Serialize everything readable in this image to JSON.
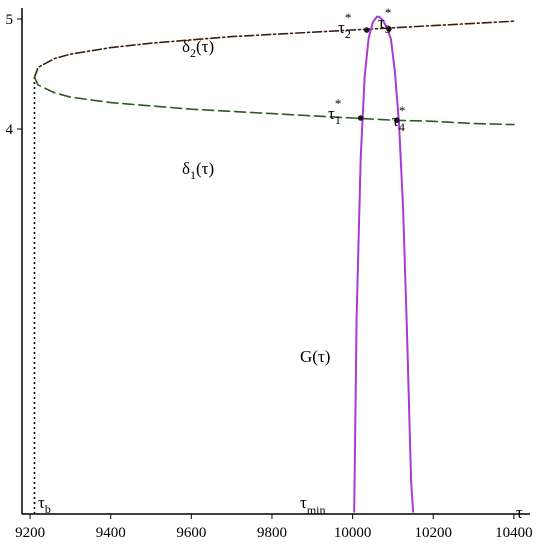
{
  "chart_data": {
    "type": "line",
    "title": "",
    "xlabel": "τ",
    "ylabel": "",
    "xlim": [
      9180,
      10440
    ],
    "ylim": [
      0.5,
      5.1
    ],
    "x_ticks": [
      "9200",
      "9400",
      "9600",
      "9800",
      "10000",
      "10200",
      "10400"
    ],
    "x_tick_values": [
      9200,
      9400,
      9600,
      9800,
      10000,
      10200,
      10400
    ],
    "y_ticks": [
      "4",
      "5"
    ],
    "y_tick_values": [
      4,
      5
    ],
    "grid": false,
    "legend": "none",
    "series": [
      {
        "name": "δ2(τ)",
        "style": "dash-dot",
        "color": "#3a2010",
        "x": [
          9211,
          9220,
          9260,
          9300,
          9400,
          9500,
          9600,
          9700,
          9800,
          9900,
          10000,
          10100,
          10200,
          10300,
          10400
        ],
        "y": [
          4.47,
          4.56,
          4.64,
          4.68,
          4.74,
          4.78,
          4.81,
          4.84,
          4.86,
          4.88,
          4.9,
          4.92,
          4.94,
          4.96,
          4.98
        ]
      },
      {
        "name": "δ1(τ)",
        "style": "dashed",
        "color": "#2f5a1e",
        "x": [
          9211,
          9220,
          9260,
          9300,
          9400,
          9500,
          9600,
          9700,
          9800,
          9900,
          10000,
          10100,
          10200,
          10300,
          10400
        ],
        "y": [
          4.47,
          4.4,
          4.33,
          4.29,
          4.24,
          4.21,
          4.18,
          4.16,
          4.14,
          4.12,
          4.1,
          4.08,
          4.07,
          4.05,
          4.04
        ]
      },
      {
        "name": "G(τ)",
        "style": "solid",
        "color": "#a93ad4",
        "x": [
          10004,
          10010,
          10020,
          10030,
          10040,
          10050,
          10060,
          10066,
          10075,
          10085,
          10095,
          10105,
          10115,
          10125,
          10135,
          10145,
          10150
        ],
        "y": [
          0.52,
          2.28,
          3.74,
          4.48,
          4.83,
          4.97,
          5.02,
          5.02,
          4.99,
          4.92,
          4.82,
          4.52,
          4.05,
          3.3,
          2.15,
          0.8,
          0.52
        ]
      }
    ],
    "vertical_lines": [
      {
        "name": "τb",
        "x": 9211,
        "style": "dotted",
        "color": "#000000"
      }
    ],
    "points": [
      {
        "label": "τ1*",
        "x": 10020,
        "y": 4.1
      },
      {
        "label": "τ2*",
        "x": 10035,
        "y": 4.9
      },
      {
        "label": "τ3*",
        "x": 10090,
        "y": 4.91
      },
      {
        "label": "τ4*",
        "x": 10110,
        "y": 4.08
      }
    ],
    "annotations": {
      "delta2": {
        "base": "δ",
        "sub": "2",
        "tail": "(τ)"
      },
      "delta1": {
        "base": "δ",
        "sub": "1",
        "tail": "(τ)"
      },
      "g": "G(τ)",
      "tau_b": {
        "base": "τ",
        "sub": "b"
      },
      "tau_min": {
        "base": "τ",
        "sub": "min"
      },
      "tau1": {
        "base": "τ",
        "sub": "1",
        "sup": "*"
      },
      "tau2": {
        "base": "τ",
        "sub": "2",
        "sup": "*"
      },
      "tau3": {
        "base": "τ",
        "sub": "3",
        "sup": "*"
      },
      "tau4": {
        "base": "τ",
        "sub": "4",
        "sup": "*"
      }
    }
  }
}
